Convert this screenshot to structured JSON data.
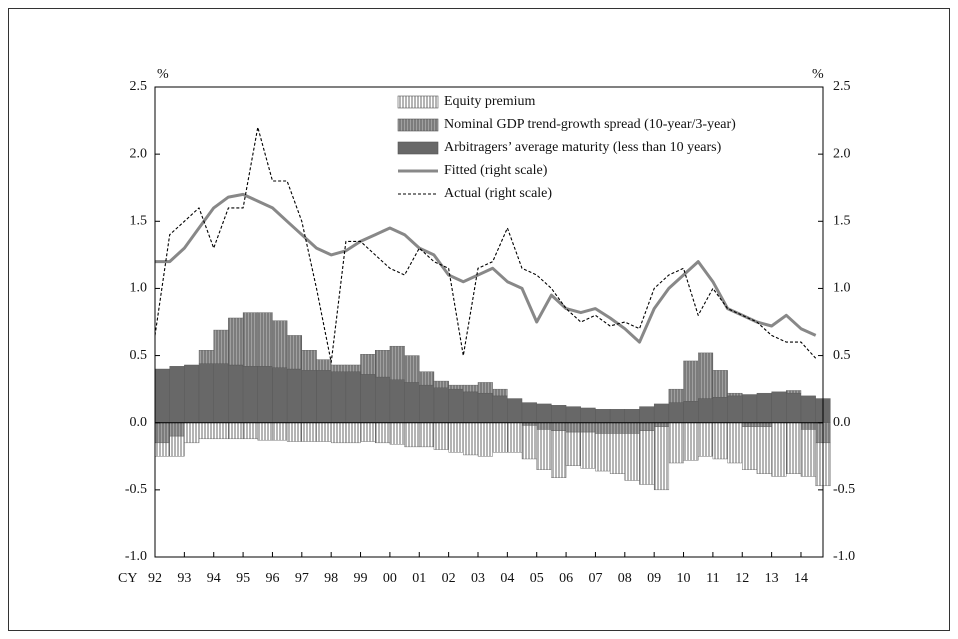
{
  "chart_data": {
    "type": "bar",
    "stacked": true,
    "y_unit": "%",
    "y2_unit": "%",
    "x_label": "CY",
    "x": [
      1992,
      1992.5,
      1993,
      1993.5,
      1994,
      1994.5,
      1995,
      1995.5,
      1996,
      1996.5,
      1997,
      1997.5,
      1998,
      1998.5,
      1999,
      1999.5,
      2000,
      2000.5,
      2001,
      2001.5,
      2002,
      2002.5,
      2003,
      2003.5,
      2004,
      2004.5,
      2005,
      2005.5,
      2006,
      2006.5,
      2007,
      2007.5,
      2008,
      2008.5,
      2009,
      2009.5,
      2010,
      2010.5,
      2011,
      2011.5,
      2012,
      2012.5,
      2013,
      2013.5,
      2014,
      2014.5
    ],
    "xlim": [
      1992,
      2014.75
    ],
    "xticks": [
      {
        "value": 1992,
        "label": "92"
      },
      {
        "value": 1993,
        "label": "93"
      },
      {
        "value": 1994,
        "label": "94"
      },
      {
        "value": 1995,
        "label": "95"
      },
      {
        "value": 1996,
        "label": "96"
      },
      {
        "value": 1997,
        "label": "97"
      },
      {
        "value": 1998,
        "label": "98"
      },
      {
        "value": 1999,
        "label": "99"
      },
      {
        "value": 2000,
        "label": "00"
      },
      {
        "value": 2001,
        "label": "01"
      },
      {
        "value": 2002,
        "label": "02"
      },
      {
        "value": 2003,
        "label": "03"
      },
      {
        "value": 2004,
        "label": "04"
      },
      {
        "value": 2005,
        "label": "05"
      },
      {
        "value": 2006,
        "label": "06"
      },
      {
        "value": 2007,
        "label": "07"
      },
      {
        "value": 2008,
        "label": "08"
      },
      {
        "value": 2009,
        "label": "09"
      },
      {
        "value": 2010,
        "label": "10"
      },
      {
        "value": 2011,
        "label": "11"
      },
      {
        "value": 2012,
        "label": "12"
      },
      {
        "value": 2013,
        "label": "13"
      },
      {
        "value": 2014,
        "label": "14"
      }
    ],
    "ylim": [
      -1,
      2.5
    ],
    "yticks": [
      {
        "value": 2.5,
        "label": "2.5"
      },
      {
        "value": 2,
        "label": "2.0"
      },
      {
        "value": 1.5,
        "label": "1.5"
      },
      {
        "value": 1,
        "label": "1.0"
      },
      {
        "value": 0.5,
        "label": "0.5"
      },
      {
        "value": 0,
        "label": "0.0"
      },
      {
        "value": -0.5,
        "label": "-0.5"
      },
      {
        "value": -1,
        "label": "-1.0"
      }
    ],
    "y2lim": [
      -1,
      2.5
    ],
    "y2ticks": [
      {
        "value": 2.5,
        "label": "2.5"
      },
      {
        "value": 2,
        "label": "2.0"
      },
      {
        "value": 1.5,
        "label": "1.5"
      },
      {
        "value": 1,
        "label": "1.0"
      },
      {
        "value": 0.5,
        "label": "0.5"
      },
      {
        "value": 0,
        "label": "0.0"
      },
      {
        "value": -0.5,
        "label": "-0.5"
      },
      {
        "value": -1,
        "label": "-1.0"
      }
    ],
    "series": [
      {
        "name": "Equity premium",
        "color": "#ffffff",
        "hatch": true,
        "values": [
          -0.1,
          -0.15,
          -0.15,
          -0.12,
          -0.12,
          -0.12,
          -0.12,
          -0.13,
          -0.13,
          -0.14,
          -0.14,
          -0.14,
          -0.15,
          -0.15,
          -0.14,
          -0.15,
          -0.16,
          -0.18,
          -0.18,
          -0.2,
          -0.22,
          -0.24,
          -0.25,
          -0.22,
          -0.22,
          -0.25,
          -0.3,
          -0.35,
          -0.25,
          -0.27,
          -0.28,
          -0.3,
          -0.35,
          -0.4,
          -0.47,
          -0.3,
          -0.28,
          -0.25,
          -0.27,
          -0.3,
          -0.32,
          -0.35,
          -0.4,
          -0.38,
          -0.35,
          -0.32
        ]
      },
      {
        "name": "Nominal GDP trend-growth spread (10-year/3-year)",
        "color": "#a0a0a0",
        "hatch": true,
        "values": [
          -0.15,
          -0.1,
          0.0,
          0.1,
          0.25,
          0.35,
          0.4,
          0.4,
          0.35,
          0.25,
          0.15,
          0.08,
          0.05,
          0.05,
          0.15,
          0.2,
          0.25,
          0.2,
          0.1,
          0.05,
          0.03,
          0.05,
          0.08,
          0.05,
          0.0,
          -0.02,
          -0.05,
          -0.06,
          -0.07,
          -0.07,
          -0.08,
          -0.08,
          -0.08,
          -0.06,
          -0.03,
          0.1,
          0.3,
          0.34,
          0.2,
          0.02,
          -0.03,
          -0.03,
          0.0,
          0.02,
          -0.05,
          -0.15
        ]
      },
      {
        "name": "Arbitragers’ average maturity (less than 10 years)",
        "color": "#686868",
        "hatch": false,
        "values": [
          0.4,
          0.42,
          0.43,
          0.44,
          0.44,
          0.43,
          0.42,
          0.42,
          0.41,
          0.4,
          0.39,
          0.39,
          0.38,
          0.38,
          0.36,
          0.34,
          0.32,
          0.3,
          0.28,
          0.26,
          0.25,
          0.23,
          0.22,
          0.2,
          0.18,
          0.15,
          0.14,
          0.13,
          0.12,
          0.11,
          0.1,
          0.1,
          0.1,
          0.12,
          0.14,
          0.15,
          0.16,
          0.18,
          0.19,
          0.2,
          0.21,
          0.22,
          0.23,
          0.22,
          0.2,
          0.18
        ]
      },
      {
        "name": "Fitted (right scale)",
        "type": "line",
        "axis": "y2",
        "color": "#888888",
        "dashed": false,
        "values": [
          1.2,
          1.2,
          1.3,
          1.45,
          1.6,
          1.68,
          1.7,
          1.65,
          1.6,
          1.5,
          1.4,
          1.3,
          1.25,
          1.28,
          1.35,
          1.4,
          1.45,
          1.4,
          1.3,
          1.25,
          1.1,
          1.05,
          1.1,
          1.15,
          1.05,
          1.0,
          0.75,
          0.95,
          0.85,
          0.82,
          0.85,
          0.78,
          0.7,
          0.6,
          0.85,
          1.0,
          1.1,
          1.2,
          1.05,
          0.85,
          0.8,
          0.75,
          0.72,
          0.8,
          0.7,
          0.65
        ]
      },
      {
        "name": "Actual (right scale)",
        "type": "line",
        "axis": "y2",
        "color": "#000000",
        "dashed": true,
        "values": [
          0.65,
          1.4,
          1.5,
          1.6,
          1.3,
          1.6,
          1.6,
          2.2,
          1.8,
          1.8,
          1.5,
          1.0,
          0.45,
          1.35,
          1.35,
          1.25,
          1.15,
          1.1,
          1.3,
          1.2,
          1.15,
          0.5,
          1.15,
          1.2,
          1.45,
          1.15,
          1.1,
          1.0,
          0.85,
          0.75,
          0.8,
          0.72,
          0.75,
          0.7,
          1.0,
          1.1,
          1.15,
          0.8,
          1.0,
          0.85,
          0.8,
          0.75,
          0.65,
          0.6,
          0.6,
          0.48
        ]
      }
    ]
  }
}
